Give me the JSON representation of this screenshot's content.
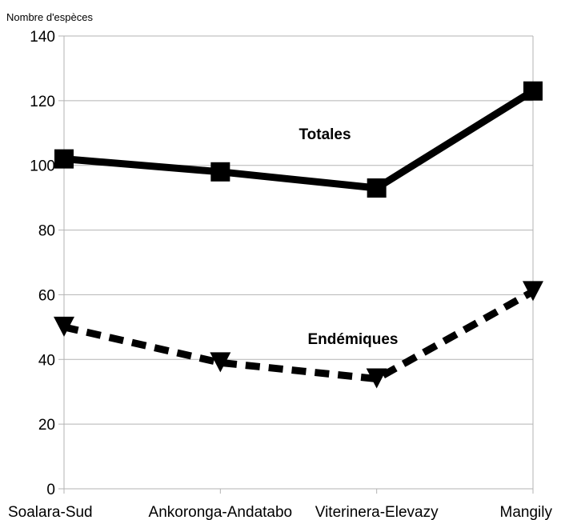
{
  "chart_data": {
    "type": "line",
    "title": "",
    "xlabel": "",
    "ylabel": "Nombre d'espèces",
    "categories": [
      "Soalara-Sud",
      "Ankoronga-Andatabo",
      "Viterinera-Elevazy",
      "Mangily"
    ],
    "ylim": [
      0,
      140
    ],
    "yticks": [
      0,
      20,
      40,
      60,
      80,
      100,
      120,
      140
    ],
    "grid": true,
    "legend": "none",
    "series": [
      {
        "name": "Totales",
        "values": [
          102,
          98,
          93,
          123
        ],
        "line_style": "solid",
        "marker": "square",
        "color": "#000000"
      },
      {
        "name": "Endémiques",
        "values": [
          50,
          39,
          34,
          61
        ],
        "line_style": "dashed",
        "marker": "triangle-down",
        "color": "#000000"
      }
    ]
  }
}
